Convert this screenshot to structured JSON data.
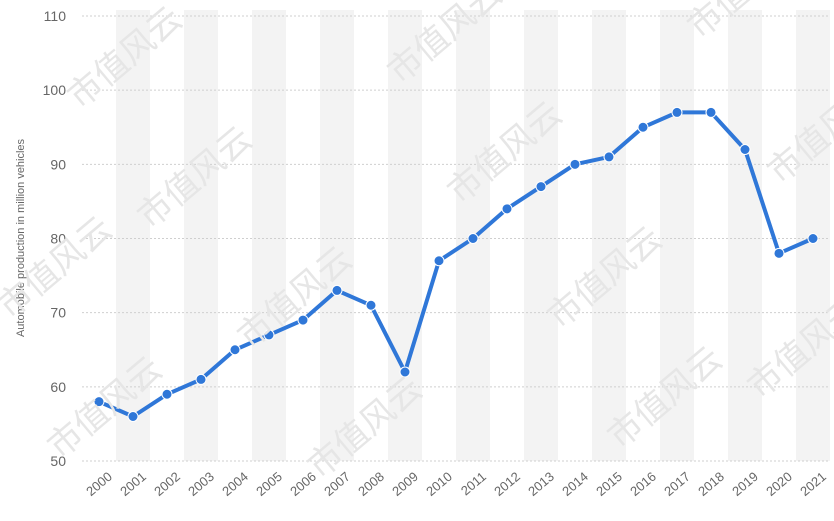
{
  "chart_data": {
    "type": "line",
    "title": "",
    "xlabel": "",
    "ylabel": "Automobile production in million vehicles",
    "x": [
      "2000",
      "2001",
      "2002",
      "2003",
      "2004",
      "2005",
      "2006",
      "2007",
      "2008",
      "2009",
      "2010",
      "2011",
      "2012",
      "2013",
      "2014",
      "2015",
      "2016",
      "2017",
      "2018",
      "2019",
      "2020",
      "2021"
    ],
    "series": [
      {
        "values": [
          58,
          56,
          59,
          61,
          65,
          67,
          69,
          73,
          71,
          62,
          77,
          80,
          84,
          87,
          90,
          91,
          95,
          97,
          97,
          92,
          78,
          80
        ]
      }
    ],
    "ylim": [
      50,
      110
    ],
    "yticks": [
      50,
      60,
      70,
      80,
      90,
      100,
      110
    ],
    "grid": true,
    "legend": "none",
    "colors": {
      "line": "#2f77d8",
      "grid": "#cfcfcf",
      "band": "#f3f3f3"
    }
  },
  "watermark_text": "市值风云"
}
